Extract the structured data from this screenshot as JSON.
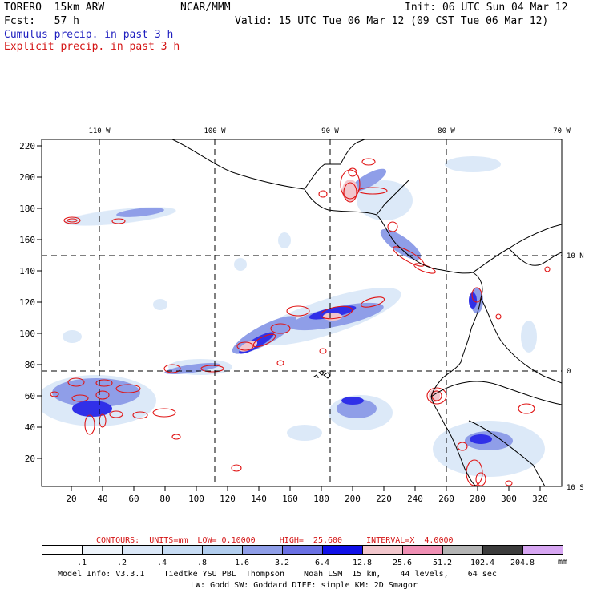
{
  "header": {
    "model": "TORERO  15km ARW",
    "org": "NCAR/MMM",
    "init": "Init: 06 UTC Sun 04 Mar 12",
    "fcst": "Fcst:   57 h",
    "valid": "Valid: 15 UTC Tue 06 Mar 12 (09 CST Tue 06 Mar 12)",
    "cumulus": "Cumulus precip. in past 3 h",
    "explicit": "Explicit precip. in past 3 h"
  },
  "colors": {
    "cumulus_text": "#1f1fbf",
    "explicit_text": "#d41414"
  },
  "axes": {
    "lon_labels": [
      "110 W",
      "100 W",
      "90 W",
      "80 W",
      "70 W"
    ],
    "lat_labels": [
      "10 N",
      "0",
      "10 S"
    ],
    "y_ticks": [
      "220",
      "200",
      "180",
      "160",
      "140",
      "120",
      "100",
      "80",
      "60",
      "40",
      "20"
    ],
    "x_ticks": [
      "20",
      "40",
      "60",
      "80",
      "100",
      "120",
      "140",
      "160",
      "180",
      "200",
      "220",
      "240",
      "260",
      "280",
      "300",
      "320"
    ]
  },
  "contours_line": "CONTOURS:  UNITS=mm  LOW= 0.10000     HIGH=  25.600     INTERVAL=X  4.0000",
  "colorbar": {
    "colors": [
      "#ffffff",
      "#eef4fb",
      "#dbe8f8",
      "#c7dcf4",
      "#b1cdee",
      "#8f9ee8",
      "#6a70e4",
      "#1010e8",
      "#f2c6cc",
      "#f08fb4",
      "#b4b4b4",
      "#3c3c3c",
      "#d7a6f2"
    ],
    "labels": [
      ".1",
      ".2",
      ".4",
      ".8",
      "1.6",
      "3.2",
      "6.4",
      "12.8",
      "25.6",
      "51.2",
      "102.4",
      "204.8"
    ],
    "unit": "mm"
  },
  "footer": {
    "line1": "Model Info: V3.3.1    Tiedtke YSU PBL  Thompson    Noah LSM  15 km,    44 levels,    64 sec",
    "line2": "LW: Godd SW: Goddard DIFF: simple KM: 2D Smagor"
  }
}
